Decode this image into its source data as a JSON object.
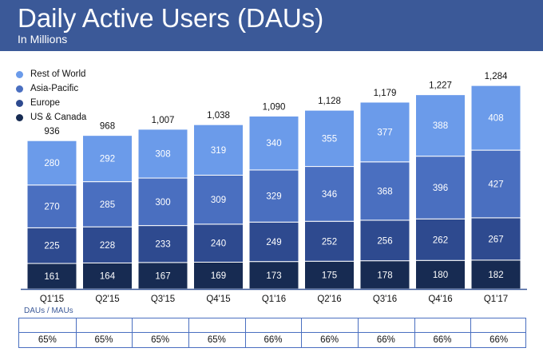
{
  "header": {
    "title": "Daily Active Users (DAUs)",
    "subtitle": "In Millions",
    "color": "#3b5998"
  },
  "legend": [
    {
      "label": "Rest of World",
      "color": "#6b9bea"
    },
    {
      "label": "Asia-Pacific",
      "color": "#4a6fc0"
    },
    {
      "label": "Europe",
      "color": "#2e4a8f"
    },
    {
      "label": "US & Canada",
      "color": "#172b52"
    }
  ],
  "mau": {
    "label": "DAUs / MAUs",
    "values": [
      "65%",
      "65%",
      "65%",
      "65%",
      "66%",
      "66%",
      "66%",
      "66%",
      "66%"
    ]
  },
  "chart_data": {
    "type": "bar",
    "stacked": true,
    "title": "Daily Active Users (DAUs)",
    "subtitle": "In Millions",
    "categories": [
      "Q1'15",
      "Q2'15",
      "Q3'15",
      "Q4'15",
      "Q1'16",
      "Q2'16",
      "Q3'16",
      "Q4'16",
      "Q1'17"
    ],
    "series": [
      {
        "name": "US & Canada",
        "color": "#172b52",
        "values": [
          161,
          164,
          167,
          169,
          173,
          175,
          178,
          180,
          182
        ]
      },
      {
        "name": "Europe",
        "color": "#2e4a8f",
        "values": [
          225,
          228,
          233,
          240,
          249,
          252,
          256,
          262,
          267
        ]
      },
      {
        "name": "Asia-Pacific",
        "color": "#4a6fc0",
        "values": [
          270,
          285,
          300,
          309,
          329,
          346,
          368,
          396,
          427
        ]
      },
      {
        "name": "Rest of World",
        "color": "#6b9bea",
        "values": [
          280,
          292,
          308,
          319,
          340,
          355,
          377,
          388,
          408
        ]
      }
    ],
    "totals": [
      "936",
      "968",
      "1,007",
      "1,038",
      "1,090",
      "1,128",
      "1,179",
      "1,227",
      "1,284"
    ],
    "ylim": [
      0,
      1300
    ],
    "legend_position": "top-left"
  }
}
